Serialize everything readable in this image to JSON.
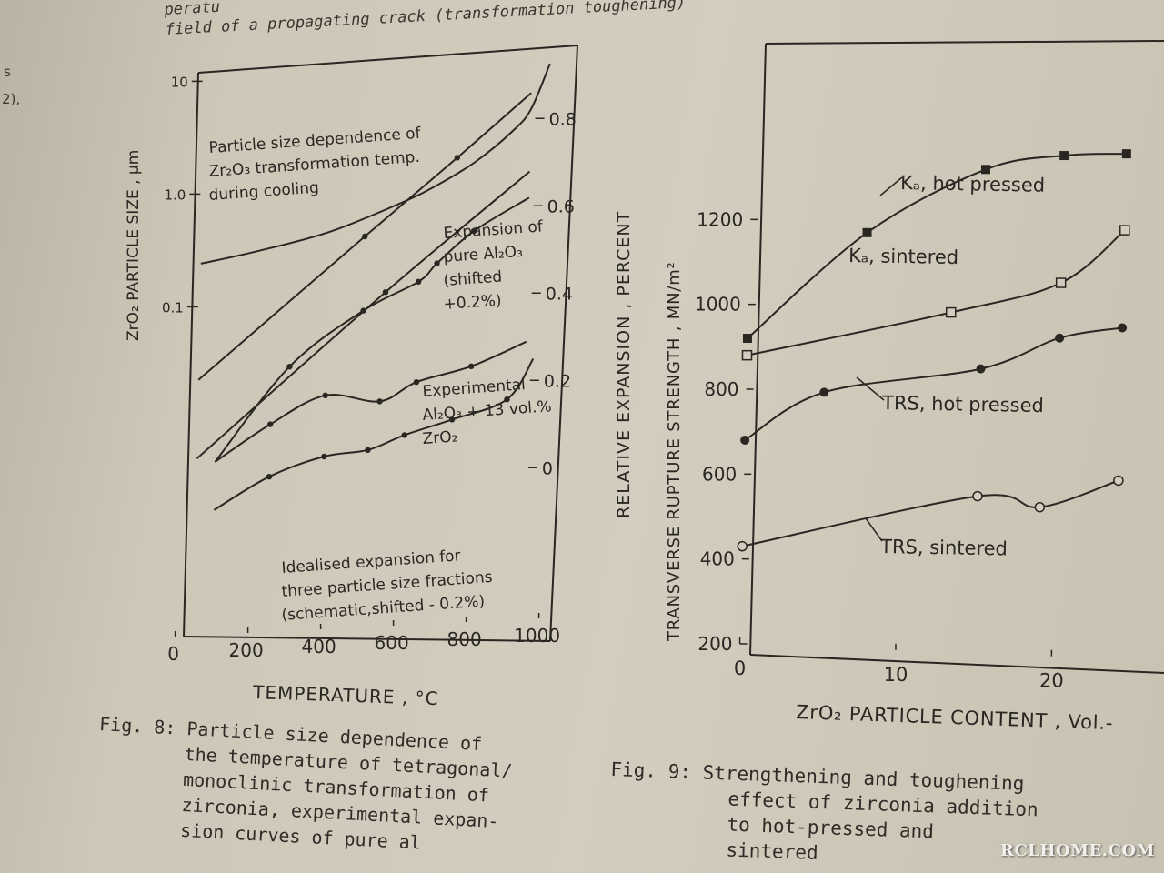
{
  "header_text": {
    "line1": "peratu",
    "line2": "field of a propagating crack (transformation toughening)"
  },
  "margin_text": {
    "a": "s",
    "b": "2),"
  },
  "fig8": {
    "caption_lines": [
      "Fig. 8: Particle size dependence of",
      "the temperature of tetragonal/",
      "monoclinic transformation of",
      "zirconia, experimental expan-",
      "sion curves of pure al"
    ],
    "left_ylabel": "ZrO₂ PARTICLE SIZE , µm",
    "right_ylabel": "RELATIVE EXPANSION , PERCENT",
    "xlabel": "TEMPERATURE , °C",
    "annotations": {
      "particle": [
        "Particle size dependence of",
        "Zr₂O₃ transformation temp.",
        "during cooling"
      ],
      "pure": [
        "Expansion of",
        "pure Al₂O₃",
        "(shifted",
        "+0.2%)"
      ],
      "experimental": [
        "Experimental",
        "Al₂O₃ + 13 vol.%",
        "ZrO₂"
      ],
      "idealised": [
        "Idealised expansion for",
        "three particle size fractions",
        "(schematic,shifted - 0.2%)"
      ]
    }
  },
  "fig9": {
    "caption_lines": [
      "Fig. 9: Strengthening and toughening",
      "effect of zirconia addition",
      "to hot-pressed and",
      "sintered"
    ],
    "ylabel": "TRANSVERSE RUPTURE STRENGTH , MN/m²",
    "xlabel": "ZrO₂ PARTICLE CONTENT , Vol.-",
    "series_labels": {
      "kc_hot": "Kₐ, hot pressed",
      "kc_sint": "Kₐ, sintered",
      "trs_hot": "TRS, hot pressed",
      "trs_sint": "TRS, sintered"
    }
  },
  "chart_data": [
    {
      "type": "line",
      "title": "",
      "xlabel": "TEMPERATURE , °C",
      "ylabel": "ZrO₂ PARTICLE SIZE , µm",
      "y2label": "RELATIVE EXPANSION , PERCENT",
      "xlim": [
        0,
        1000
      ],
      "x_ticks": [
        "0",
        "200",
        "400",
        "600",
        "800",
        "1000"
      ],
      "ylim": [
        0.01,
        10
      ],
      "yscale": "log",
      "y_ticks": [
        "10",
        "1.0",
        "0.1"
      ],
      "y2_ticks": [
        "0.8",
        "0.6",
        "0.4",
        "0.2",
        "0"
      ],
      "series": [
        {
          "name": "Particle size dependence of Zr₂O₃ transformation temp. during cooling",
          "axis": "left",
          "x": [
            50,
            200,
            400,
            600,
            700,
            800,
            900,
            950,
            1000
          ],
          "y": [
            0.24,
            0.29,
            0.4,
            0.68,
            0.95,
            1.45,
            2.6,
            4.0,
            10
          ]
        },
        {
          "name": "Expansion of pure Al₂O₃ (shifted +0.2%)",
          "axis": "right",
          "x": [
            50,
            500,
            750,
            950
          ],
          "y": [
            0.24,
            0.55,
            0.72,
            0.86
          ]
        },
        {
          "name": "Experimental Al₂O₃ + 13 vol.% ZrO₂",
          "axis": "right",
          "x": [
            50,
            560,
            950
          ],
          "y": [
            0.06,
            0.42,
            0.68
          ]
        },
        {
          "name": "Experimental Al₂O₃ + 13 vol.% ZrO₂ (upper segment)",
          "axis": "right",
          "x": [
            100,
            300,
            500,
            650,
            700,
            800,
            950
          ],
          "y": [
            0.05,
            0.26,
            0.38,
            0.44,
            0.48,
            0.55,
            0.62
          ]
        },
        {
          "name": "Idealised expansion (upper)",
          "axis": "right",
          "x": [
            100,
            250,
            400,
            550,
            650,
            800,
            950
          ],
          "y": [
            0.05,
            0.13,
            0.19,
            0.17,
            0.21,
            0.24,
            0.29
          ]
        },
        {
          "name": "Idealised expansion (lower)",
          "axis": "right",
          "x": [
            100,
            250,
            400,
            520,
            620,
            750,
            900,
            970
          ],
          "y": [
            -0.06,
            0.01,
            0.05,
            0.06,
            0.09,
            0.12,
            0.16,
            0.25
          ]
        }
      ]
    },
    {
      "type": "line",
      "title": "",
      "xlabel": "ZrO₂ PARTICLE CONTENT , Vol.-",
      "ylabel": "TRANSVERSE RUPTURE STRENGTH , MN/m²",
      "xlim": [
        0,
        28
      ],
      "x_ticks": [
        "0",
        "10",
        "20"
      ],
      "ylim": [
        200,
        1400
      ],
      "y_ticks": [
        "200",
        "400",
        "600",
        "800",
        "1000",
        "1200"
      ],
      "series": [
        {
          "name": "Kₐ, hot pressed",
          "x": [
            0,
            7.5,
            15,
            20,
            24
          ],
          "y": [
            920,
            1180,
            1340,
            1380,
            1390
          ]
        },
        {
          "name": "Kₐ, sintered",
          "x": [
            0,
            13,
            20,
            24
          ],
          "y": [
            880,
            1000,
            1080,
            1210
          ]
        },
        {
          "name": "TRS, hot pressed",
          "x": [
            0,
            5,
            15,
            20,
            24
          ],
          "y": [
            680,
            800,
            870,
            950,
            980
          ]
        },
        {
          "name": "TRS, sintered",
          "x": [
            0,
            15,
            19,
            24
          ],
          "y": [
            430,
            570,
            550,
            620
          ]
        }
      ]
    }
  ]
}
